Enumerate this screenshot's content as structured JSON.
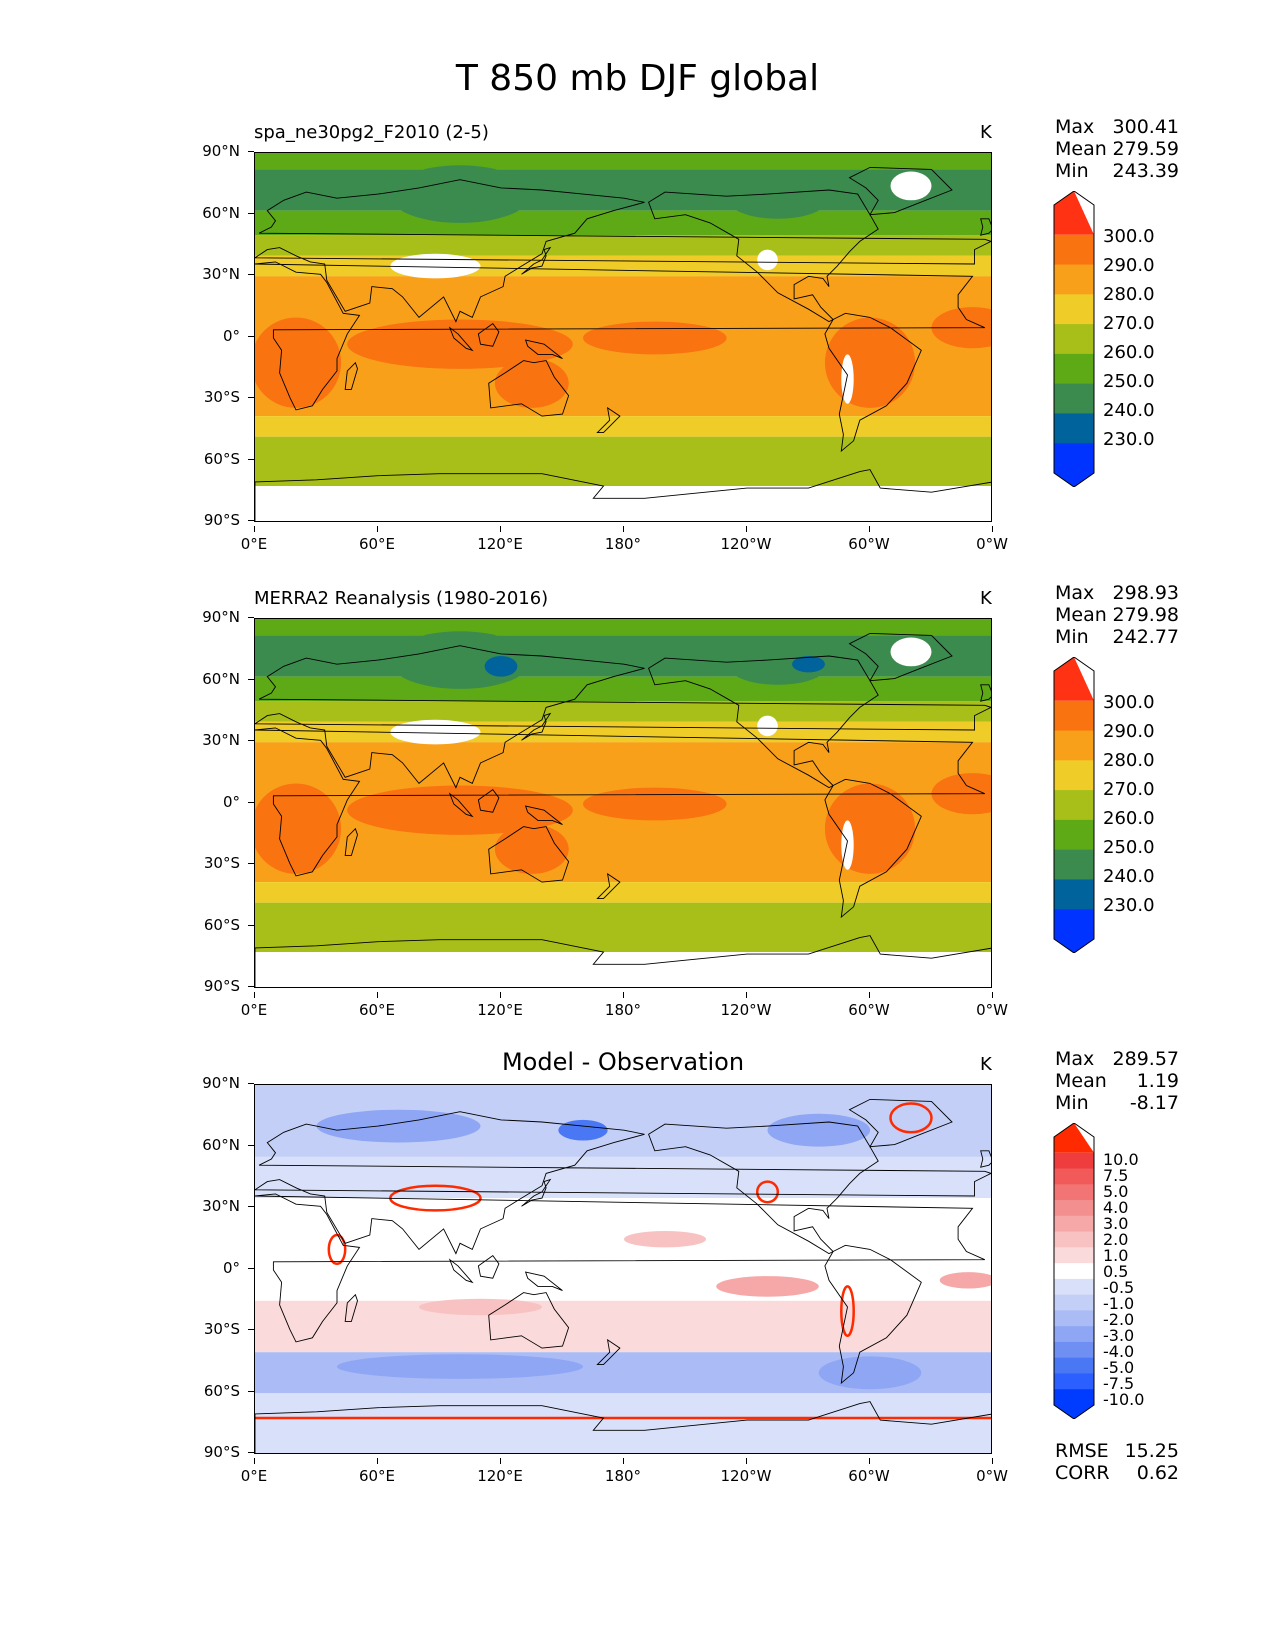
{
  "figure": {
    "title": "T 850 mb DJF global"
  },
  "axes": {
    "lat_ticks": [
      "90°N",
      "60°N",
      "30°N",
      "0°",
      "30°S",
      "60°S",
      "90°S"
    ],
    "lon_ticks": [
      "0°E",
      "60°E",
      "120°E",
      "180°",
      "120°W",
      "60°W",
      "0°W"
    ]
  },
  "colors": {
    "temp_levels": [
      "#0033ff",
      "#00639c",
      "#3b8b4e",
      "#5ea916",
      "#a8bf1a",
      "#f0cc28",
      "#f9a01b",
      "#f97310",
      "#ff3314"
    ],
    "diff_levels": [
      "#003cff",
      "#2b5fff",
      "#4a78f5",
      "#6f90f2",
      "#8ea6f3",
      "#aabbf5",
      "#c3cff7",
      "#d9e1fa",
      "#ffffff",
      "#fadada",
      "#f8c2c2",
      "#f6a8a8",
      "#f48f8f",
      "#f27474",
      "#f25a5a",
      "#ef3c3c",
      "#ff2a00"
    ],
    "land_outline": "#000000"
  },
  "panels": [
    {
      "subtitle": "spa_ne30pg2_F2010 (2-5)",
      "center_title": "",
      "units": "K",
      "stats": [
        {
          "label": "Max",
          "value": "300.41"
        },
        {
          "label": "Mean",
          "value": "279.59"
        },
        {
          "label": "Min",
          "value": "243.39"
        }
      ],
      "colorbar_labels": [
        "300.0",
        "290.0",
        "280.0",
        "270.0",
        "260.0",
        "250.0",
        "240.0",
        "230.0"
      ],
      "extra_stats": []
    },
    {
      "subtitle": "MERRA2 Reanalysis (1980-2016)",
      "center_title": "",
      "units": "K",
      "stats": [
        {
          "label": "Max",
          "value": "298.93"
        },
        {
          "label": "Mean",
          "value": "279.98"
        },
        {
          "label": "Min",
          "value": "242.77"
        }
      ],
      "colorbar_labels": [
        "300.0",
        "290.0",
        "280.0",
        "270.0",
        "260.0",
        "250.0",
        "240.0",
        "230.0"
      ],
      "extra_stats": []
    },
    {
      "subtitle": "",
      "center_title": "Model - Observation",
      "units": "K",
      "stats": [
        {
          "label": "Max",
          "value": "289.57"
        },
        {
          "label": "Mean",
          "value": "1.19"
        },
        {
          "label": "Min",
          "value": "-8.17"
        }
      ],
      "colorbar_labels": [
        "10.0",
        "7.5",
        "5.0",
        "4.0",
        "3.0",
        "2.0",
        "1.0",
        "0.5",
        "-0.5",
        "-1.0",
        "-2.0",
        "-3.0",
        "-4.0",
        "-5.0",
        "-7.5",
        "-10.0"
      ],
      "extra_stats": [
        {
          "label": "RMSE",
          "value": "15.25"
        },
        {
          "label": "CORR",
          "value": "0.62"
        }
      ]
    }
  ]
}
